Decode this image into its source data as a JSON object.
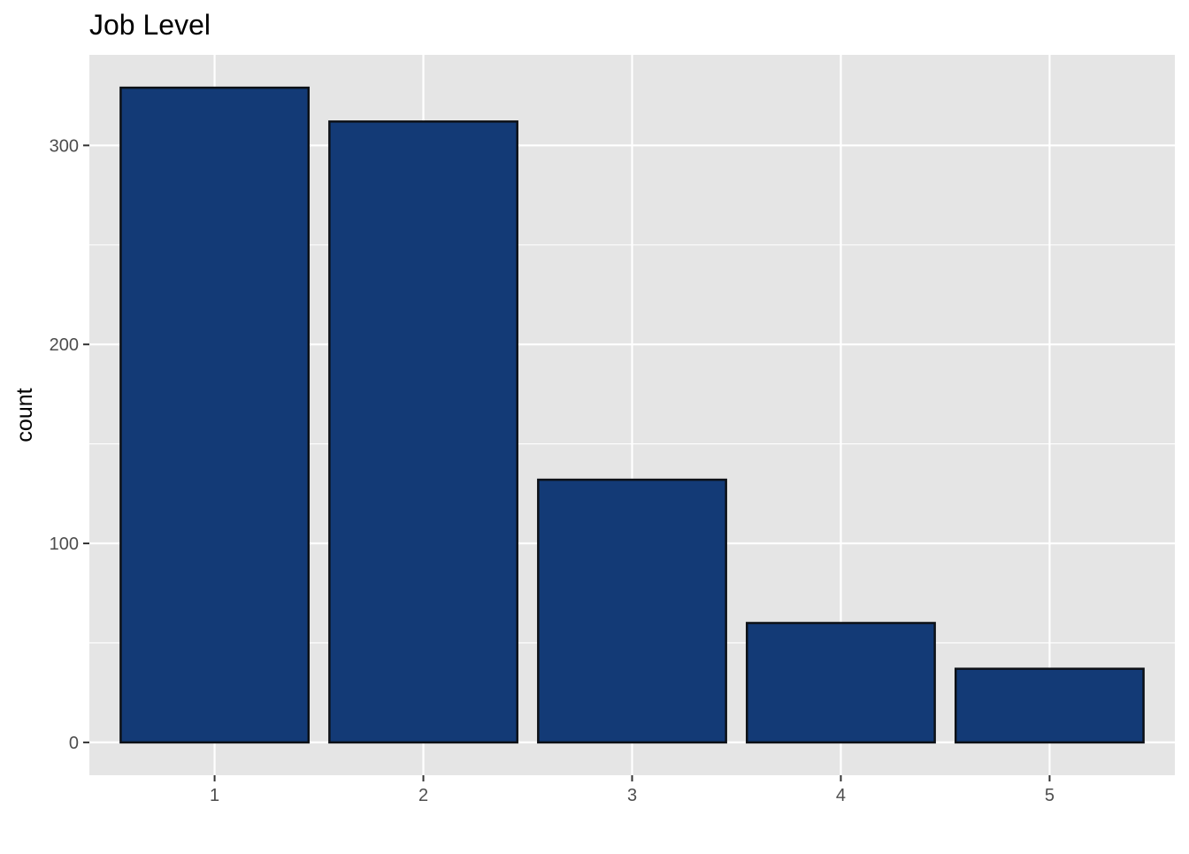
{
  "chart_data": {
    "type": "bar",
    "title": "Job Level",
    "xlabel": "",
    "ylabel": "count",
    "categories": [
      "1",
      "2",
      "3",
      "4",
      "5"
    ],
    "values": [
      329,
      312,
      132,
      60,
      37
    ],
    "ylim": [
      -16.5,
      345.5
    ],
    "yticks": [
      0,
      100,
      200,
      300
    ],
    "yticks_labels": [
      "0",
      "100",
      "200",
      "300"
    ],
    "grid": true,
    "legend": "none"
  },
  "style": {
    "panel_bg": "#e5e5e5",
    "grid_color": "#ffffff",
    "bar_fill": "#133a76",
    "bar_stroke": "#0d1117",
    "tick_color": "#333333"
  }
}
